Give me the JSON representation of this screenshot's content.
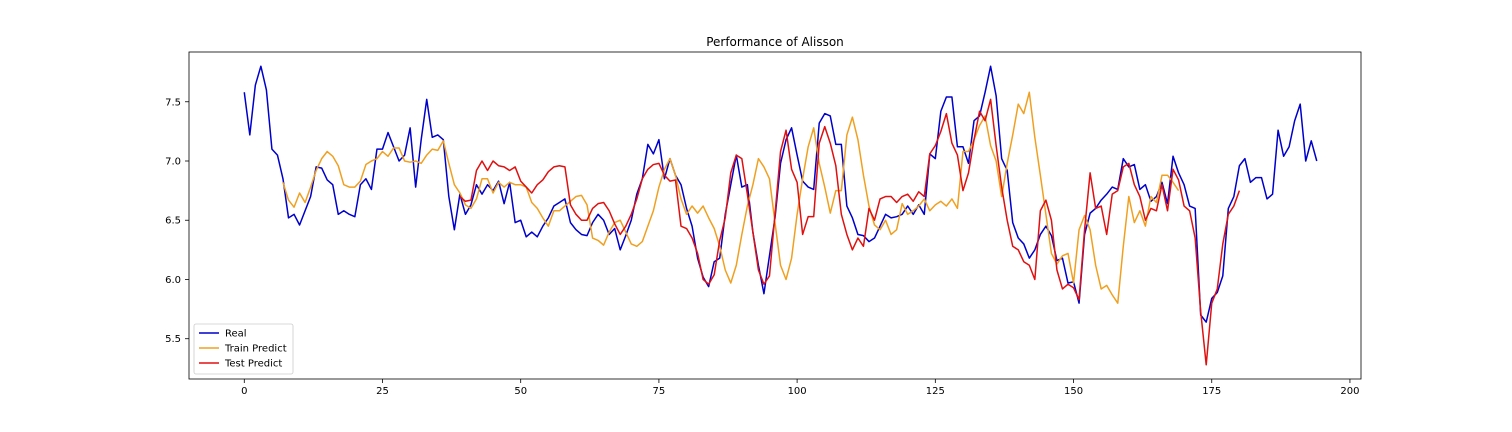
{
  "chart_data": {
    "type": "line",
    "title": "Performance of Alisson",
    "xlabel": "",
    "ylabel": "",
    "xlim": [
      -10,
      202
    ],
    "ylim": [
      5.16,
      7.92
    ],
    "x_ticks": [
      0,
      25,
      50,
      75,
      100,
      125,
      150,
      175,
      200
    ],
    "y_ticks": [
      5.5,
      6.0,
      6.5,
      7.0,
      7.5
    ],
    "y_tick_labels": [
      "5.5",
      "6.0",
      "6.5",
      "7.0",
      "7.5"
    ],
    "grid": false,
    "legend_position": "lower-left",
    "series": [
      {
        "name": "Real",
        "color": "#0000cc",
        "x_start": 0,
        "values": [
          7.58,
          7.22,
          7.64,
          7.8,
          7.6,
          7.1,
          7.05,
          6.85,
          6.52,
          6.55,
          6.46,
          6.58,
          6.7,
          6.95,
          6.94,
          6.84,
          6.8,
          6.55,
          6.58,
          6.55,
          6.53,
          6.8,
          6.85,
          6.76,
          7.1,
          7.1,
          7.24,
          7.12,
          7.0,
          7.05,
          7.28,
          6.78,
          7.18,
          7.52,
          7.2,
          7.22,
          7.18,
          6.7,
          6.42,
          6.72,
          6.55,
          6.63,
          6.8,
          6.72,
          6.8,
          6.75,
          6.83,
          6.64,
          6.82,
          6.48,
          6.5,
          6.36,
          6.4,
          6.36,
          6.45,
          6.52,
          6.62,
          6.65,
          6.68,
          6.48,
          6.42,
          6.38,
          6.37,
          6.48,
          6.55,
          6.5,
          6.38,
          6.43,
          6.25,
          6.37,
          6.5,
          6.72,
          6.85,
          7.14,
          7.06,
          7.18,
          6.85,
          7.02,
          6.88,
          6.8,
          6.6,
          6.45,
          6.18,
          6.02,
          5.94,
          6.15,
          6.18,
          6.55,
          6.8,
          7.05,
          6.78,
          6.8,
          6.4,
          6.12,
          5.88,
          6.2,
          6.52,
          6.98,
          7.18,
          7.28,
          7.05,
          6.83,
          6.78,
          6.76,
          7.32,
          7.4,
          7.38,
          7.14,
          7.14,
          6.62,
          6.52,
          6.38,
          6.37,
          6.32,
          6.35,
          6.45,
          6.55,
          6.52,
          6.53,
          6.55,
          6.62,
          6.55,
          6.63,
          6.55,
          7.06,
          7.02,
          7.42,
          7.54,
          7.54,
          7.12,
          7.12,
          6.98,
          7.34,
          7.38,
          7.58,
          7.8,
          7.55,
          7.02,
          6.92,
          6.48,
          6.35,
          6.3,
          6.18,
          6.25,
          6.38,
          6.45,
          6.37,
          6.16,
          6.18,
          5.97,
          5.98,
          5.8,
          6.38,
          6.56,
          6.6,
          6.67,
          6.72,
          6.78,
          6.76,
          7.02,
          6.95,
          6.97,
          6.76,
          6.8,
          6.66,
          6.7,
          6.82,
          6.64,
          7.04,
          6.9,
          6.8,
          6.62,
          6.6,
          5.7,
          5.64,
          5.84,
          5.89,
          6.03,
          6.6,
          6.7,
          6.96,
          7.02,
          6.82,
          6.86,
          6.86,
          6.68,
          6.72,
          7.26,
          7.04,
          7.12,
          7.34,
          7.48,
          7.0,
          7.17,
          7.0
        ]
      },
      {
        "name": "Train Predict",
        "color": "#f0a020",
        "x_start": 7,
        "values": [
          6.82,
          6.67,
          6.61,
          6.73,
          6.65,
          6.78,
          6.92,
          7.02,
          7.08,
          7.04,
          6.96,
          6.8,
          6.78,
          6.78,
          6.83,
          6.97,
          7.0,
          7.02,
          7.08,
          7.04,
          7.11,
          7.11,
          7.0,
          6.99,
          7.0,
          6.98,
          7.05,
          7.1,
          7.09,
          7.17,
          6.98,
          6.8,
          6.73,
          6.63,
          6.6,
          6.68,
          6.85,
          6.85,
          6.73,
          6.82,
          6.78,
          6.82,
          6.8,
          6.8,
          6.78,
          6.65,
          6.6,
          6.52,
          6.45,
          6.58,
          6.58,
          6.62,
          6.66,
          6.7,
          6.71,
          6.63,
          6.35,
          6.33,
          6.29,
          6.4,
          6.48,
          6.5,
          6.4,
          6.3,
          6.28,
          6.32,
          6.45,
          6.58,
          6.78,
          6.93,
          7.02,
          6.88,
          6.68,
          6.55,
          6.62,
          6.56,
          6.62,
          6.52,
          6.43,
          6.28,
          6.08,
          5.97,
          6.12,
          6.38,
          6.62,
          6.8,
          7.02,
          6.95,
          6.85,
          6.48,
          6.12,
          6.0,
          6.18,
          6.55,
          6.85,
          7.12,
          7.28,
          6.98,
          6.78,
          6.56,
          6.75,
          6.75,
          7.22,
          7.37,
          7.18,
          6.88,
          6.62,
          6.46,
          6.42,
          6.5,
          6.38,
          6.42,
          6.64,
          6.55,
          6.58,
          6.62,
          6.68,
          6.58,
          6.63,
          6.66,
          6.62,
          6.68,
          6.6,
          7.08,
          7.08,
          7.18,
          7.3,
          7.38,
          7.13,
          7.0,
          6.7,
          6.98,
          7.22,
          7.48,
          7.4,
          7.58,
          7.2,
          6.88,
          6.55,
          6.22,
          6.13,
          6.2,
          6.22,
          5.97,
          6.42,
          6.54,
          6.42,
          6.12,
          5.92,
          5.95,
          5.87,
          5.8,
          6.28,
          6.7,
          6.48,
          6.58,
          6.45,
          6.7,
          6.65,
          6.88,
          6.88,
          6.82,
          6.75
        ]
      },
      {
        "name": "Test Predict",
        "color": "#e01010",
        "x_start": 39,
        "values": [
          6.7,
          6.66,
          6.67,
          6.92,
          7.0,
          6.92,
          7.0,
          6.96,
          6.95,
          6.92,
          6.95,
          6.83,
          6.78,
          6.73,
          6.8,
          6.84,
          6.91,
          6.95,
          6.96,
          6.95,
          6.63,
          6.55,
          6.5,
          6.5,
          6.6,
          6.64,
          6.65,
          6.58,
          6.47,
          6.38,
          6.45,
          6.55,
          6.68,
          6.85,
          6.93,
          6.97,
          6.98,
          6.88,
          6.83,
          6.84,
          6.45,
          6.43,
          6.35,
          6.22,
          6.0,
          5.96,
          6.04,
          6.33,
          6.52,
          6.9,
          7.05,
          7.02,
          6.72,
          6.4,
          6.08,
          5.96,
          6.03,
          6.55,
          7.08,
          7.26,
          6.93,
          6.82,
          6.38,
          6.53,
          6.53,
          7.15,
          7.29,
          7.15,
          6.96,
          6.55,
          6.38,
          6.25,
          6.35,
          6.28,
          6.6,
          6.5,
          6.68,
          6.7,
          6.7,
          6.65,
          6.7,
          6.72,
          6.66,
          6.74,
          6.7,
          7.06,
          7.13,
          7.25,
          7.4,
          7.15,
          7.05,
          6.75,
          6.9,
          7.18,
          7.42,
          7.34,
          7.52,
          7.13,
          6.78,
          6.5,
          6.28,
          6.25,
          6.15,
          6.12,
          6.0,
          6.58,
          6.67,
          6.5,
          6.08,
          5.92,
          5.96,
          5.93,
          5.83,
          6.42,
          6.9,
          6.6,
          6.62,
          6.38,
          6.72,
          6.75,
          6.95,
          6.98,
          6.8,
          6.7,
          6.5,
          6.6,
          6.58,
          6.8,
          6.58,
          6.93,
          6.84,
          6.62,
          6.58,
          6.35,
          5.73,
          5.28,
          5.8,
          5.92,
          6.3,
          6.55,
          6.62,
          6.75
        ]
      }
    ]
  }
}
